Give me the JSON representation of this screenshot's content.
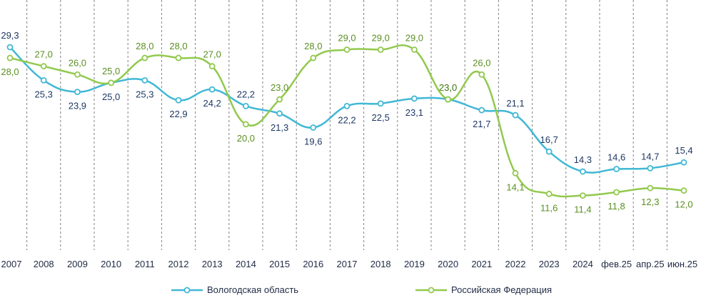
{
  "chart_data": {
    "type": "line",
    "categories": [
      "2007",
      "2008",
      "2009",
      "2010",
      "2011",
      "2012",
      "2013",
      "2014",
      "2015",
      "2016",
      "2017",
      "2018",
      "2019",
      "2020",
      "2021",
      "2022",
      "2023",
      "2024",
      "фев.25",
      "апр.25",
      "июн.25"
    ],
    "series": [
      {
        "name": "Вологодская область",
        "color": "#41b8d5",
        "label_color": "#1f3864",
        "values": [
          29.3,
          25.3,
          23.9,
          25.0,
          25.3,
          22.9,
          24.2,
          22.2,
          21.3,
          19.6,
          22.2,
          22.5,
          23.1,
          23.0,
          21.7,
          21.1,
          16.7,
          14.3,
          14.6,
          14.7,
          15.4
        ],
        "labels": [
          "29,3",
          "25,3",
          "23,9",
          "25,0",
          "25,3",
          "22,9",
          "24,2",
          "22,2",
          "21,3",
          "19,6",
          "22,2",
          "22,5",
          "23,1",
          "23,0",
          "21,7",
          "21,1",
          "16,7",
          "14,3",
          "14,6",
          "14,7",
          "15,4"
        ]
      },
      {
        "name": "Российская Федерация",
        "color": "#92c94e",
        "label_color": "#5b8f22",
        "values": [
          28.0,
          27.0,
          26.0,
          25.0,
          28.0,
          28.0,
          27.0,
          20.0,
          23.0,
          28.0,
          29.0,
          29.0,
          29.0,
          23.0,
          26.0,
          14.1,
          11.6,
          11.4,
          11.8,
          12.3,
          12.0
        ],
        "labels": [
          "28,0",
          "27,0",
          "26,0",
          "25,0",
          "28,0",
          "28,0",
          "27,0",
          "20,0",
          "23,0",
          "28,0",
          "29,0",
          "29,0",
          "29,0",
          "23,0",
          "26,0",
          "14,1",
          "11,6",
          "11,4",
          "11,8",
          "12,3",
          "12,0"
        ]
      }
    ],
    "grid": "vertical dashed",
    "legend_placement": "bottom"
  }
}
